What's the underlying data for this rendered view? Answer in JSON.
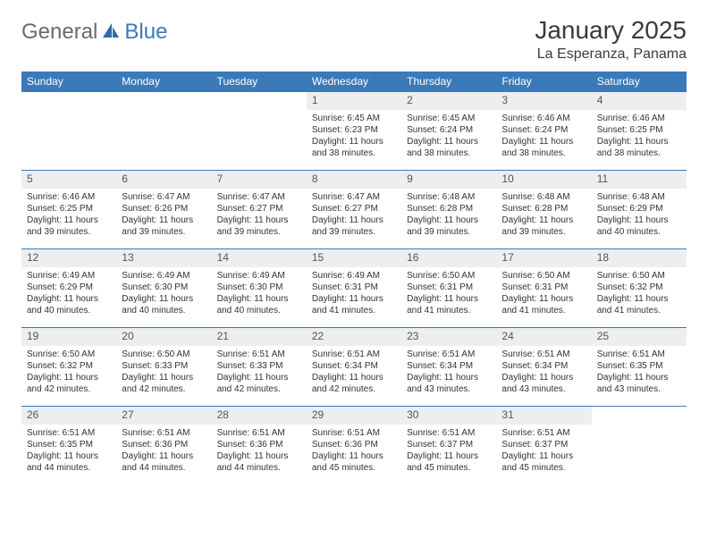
{
  "brand": {
    "part1": "General",
    "part2": "Blue"
  },
  "title": "January 2025",
  "location": "La Esperanza, Panama",
  "colors": {
    "header_bg": "#3a7ab8",
    "header_text": "#ffffff",
    "daynum_bg": "#eceef0",
    "border": "#3a7ab8",
    "text": "#333333",
    "logo_gray": "#6a6a6a",
    "logo_blue": "#3a7ab8",
    "background": "#ffffff"
  },
  "typography": {
    "title_fontsize": 28,
    "location_fontsize": 16,
    "weekday_fontsize": 12,
    "daynum_fontsize": 12,
    "body_fontsize": 10
  },
  "weekdays": [
    "Sunday",
    "Monday",
    "Tuesday",
    "Wednesday",
    "Thursday",
    "Friday",
    "Saturday"
  ],
  "weeks": [
    [
      null,
      null,
      null,
      {
        "n": "1",
        "sr": "Sunrise: 6:45 AM",
        "ss": "Sunset: 6:23 PM",
        "d1": "Daylight: 11 hours",
        "d2": "and 38 minutes."
      },
      {
        "n": "2",
        "sr": "Sunrise: 6:45 AM",
        "ss": "Sunset: 6:24 PM",
        "d1": "Daylight: 11 hours",
        "d2": "and 38 minutes."
      },
      {
        "n": "3",
        "sr": "Sunrise: 6:46 AM",
        "ss": "Sunset: 6:24 PM",
        "d1": "Daylight: 11 hours",
        "d2": "and 38 minutes."
      },
      {
        "n": "4",
        "sr": "Sunrise: 6:46 AM",
        "ss": "Sunset: 6:25 PM",
        "d1": "Daylight: 11 hours",
        "d2": "and 38 minutes."
      }
    ],
    [
      {
        "n": "5",
        "sr": "Sunrise: 6:46 AM",
        "ss": "Sunset: 6:25 PM",
        "d1": "Daylight: 11 hours",
        "d2": "and 39 minutes."
      },
      {
        "n": "6",
        "sr": "Sunrise: 6:47 AM",
        "ss": "Sunset: 6:26 PM",
        "d1": "Daylight: 11 hours",
        "d2": "and 39 minutes."
      },
      {
        "n": "7",
        "sr": "Sunrise: 6:47 AM",
        "ss": "Sunset: 6:27 PM",
        "d1": "Daylight: 11 hours",
        "d2": "and 39 minutes."
      },
      {
        "n": "8",
        "sr": "Sunrise: 6:47 AM",
        "ss": "Sunset: 6:27 PM",
        "d1": "Daylight: 11 hours",
        "d2": "and 39 minutes."
      },
      {
        "n": "9",
        "sr": "Sunrise: 6:48 AM",
        "ss": "Sunset: 6:28 PM",
        "d1": "Daylight: 11 hours",
        "d2": "and 39 minutes."
      },
      {
        "n": "10",
        "sr": "Sunrise: 6:48 AM",
        "ss": "Sunset: 6:28 PM",
        "d1": "Daylight: 11 hours",
        "d2": "and 39 minutes."
      },
      {
        "n": "11",
        "sr": "Sunrise: 6:48 AM",
        "ss": "Sunset: 6:29 PM",
        "d1": "Daylight: 11 hours",
        "d2": "and 40 minutes."
      }
    ],
    [
      {
        "n": "12",
        "sr": "Sunrise: 6:49 AM",
        "ss": "Sunset: 6:29 PM",
        "d1": "Daylight: 11 hours",
        "d2": "and 40 minutes."
      },
      {
        "n": "13",
        "sr": "Sunrise: 6:49 AM",
        "ss": "Sunset: 6:30 PM",
        "d1": "Daylight: 11 hours",
        "d2": "and 40 minutes."
      },
      {
        "n": "14",
        "sr": "Sunrise: 6:49 AM",
        "ss": "Sunset: 6:30 PM",
        "d1": "Daylight: 11 hours",
        "d2": "and 40 minutes."
      },
      {
        "n": "15",
        "sr": "Sunrise: 6:49 AM",
        "ss": "Sunset: 6:31 PM",
        "d1": "Daylight: 11 hours",
        "d2": "and 41 minutes."
      },
      {
        "n": "16",
        "sr": "Sunrise: 6:50 AM",
        "ss": "Sunset: 6:31 PM",
        "d1": "Daylight: 11 hours",
        "d2": "and 41 minutes."
      },
      {
        "n": "17",
        "sr": "Sunrise: 6:50 AM",
        "ss": "Sunset: 6:31 PM",
        "d1": "Daylight: 11 hours",
        "d2": "and 41 minutes."
      },
      {
        "n": "18",
        "sr": "Sunrise: 6:50 AM",
        "ss": "Sunset: 6:32 PM",
        "d1": "Daylight: 11 hours",
        "d2": "and 41 minutes."
      }
    ],
    [
      {
        "n": "19",
        "sr": "Sunrise: 6:50 AM",
        "ss": "Sunset: 6:32 PM",
        "d1": "Daylight: 11 hours",
        "d2": "and 42 minutes."
      },
      {
        "n": "20",
        "sr": "Sunrise: 6:50 AM",
        "ss": "Sunset: 6:33 PM",
        "d1": "Daylight: 11 hours",
        "d2": "and 42 minutes."
      },
      {
        "n": "21",
        "sr": "Sunrise: 6:51 AM",
        "ss": "Sunset: 6:33 PM",
        "d1": "Daylight: 11 hours",
        "d2": "and 42 minutes."
      },
      {
        "n": "22",
        "sr": "Sunrise: 6:51 AM",
        "ss": "Sunset: 6:34 PM",
        "d1": "Daylight: 11 hours",
        "d2": "and 42 minutes."
      },
      {
        "n": "23",
        "sr": "Sunrise: 6:51 AM",
        "ss": "Sunset: 6:34 PM",
        "d1": "Daylight: 11 hours",
        "d2": "and 43 minutes."
      },
      {
        "n": "24",
        "sr": "Sunrise: 6:51 AM",
        "ss": "Sunset: 6:34 PM",
        "d1": "Daylight: 11 hours",
        "d2": "and 43 minutes."
      },
      {
        "n": "25",
        "sr": "Sunrise: 6:51 AM",
        "ss": "Sunset: 6:35 PM",
        "d1": "Daylight: 11 hours",
        "d2": "and 43 minutes."
      }
    ],
    [
      {
        "n": "26",
        "sr": "Sunrise: 6:51 AM",
        "ss": "Sunset: 6:35 PM",
        "d1": "Daylight: 11 hours",
        "d2": "and 44 minutes."
      },
      {
        "n": "27",
        "sr": "Sunrise: 6:51 AM",
        "ss": "Sunset: 6:36 PM",
        "d1": "Daylight: 11 hours",
        "d2": "and 44 minutes."
      },
      {
        "n": "28",
        "sr": "Sunrise: 6:51 AM",
        "ss": "Sunset: 6:36 PM",
        "d1": "Daylight: 11 hours",
        "d2": "and 44 minutes."
      },
      {
        "n": "29",
        "sr": "Sunrise: 6:51 AM",
        "ss": "Sunset: 6:36 PM",
        "d1": "Daylight: 11 hours",
        "d2": "and 45 minutes."
      },
      {
        "n": "30",
        "sr": "Sunrise: 6:51 AM",
        "ss": "Sunset: 6:37 PM",
        "d1": "Daylight: 11 hours",
        "d2": "and 45 minutes."
      },
      {
        "n": "31",
        "sr": "Sunrise: 6:51 AM",
        "ss": "Sunset: 6:37 PM",
        "d1": "Daylight: 11 hours",
        "d2": "and 45 minutes."
      },
      null
    ]
  ]
}
